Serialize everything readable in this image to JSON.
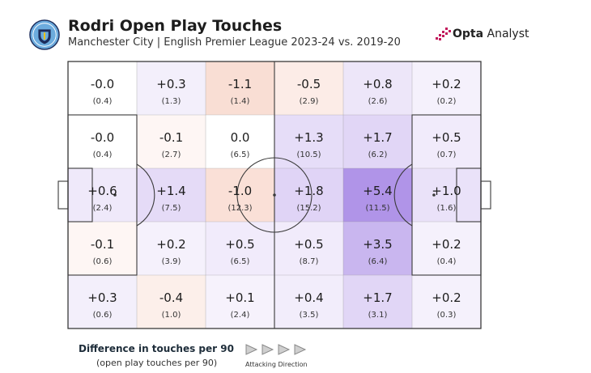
{
  "header": {
    "title": "Rodri Open Play Touches",
    "subtitle": "Manchester City | English Premier League 2023-24 vs. 2019-20",
    "crest_icon": "manchester-city-crest-icon",
    "brand_logo_icon": "opta-analyst-logo-icon",
    "brand_name_bold": "Opta",
    "brand_name_rest": " Analyst"
  },
  "legend": {
    "title": "Difference in touches per 90",
    "subtitle": "(open play touches per 90)",
    "direction_label": "Attacking Direction",
    "direction_icon": "play-arrow-icon"
  },
  "colors": {
    "positive": "#7c4dd8",
    "negative": "#f0a58a",
    "pitch_lines": "#3a3a3a",
    "grid_lines": "#9a9a9a"
  },
  "chart_data": {
    "type": "heatmap",
    "rows": 5,
    "cols": 6,
    "value_label": "Difference in touches per 90",
    "secondary_label": "open play touches per 90",
    "direction": "left-to-right",
    "cells": [
      [
        {
          "diff": "-0.0",
          "touches": "(0.4)"
        },
        {
          "diff": "+0.3",
          "touches": "(1.3)"
        },
        {
          "diff": "-1.1",
          "touches": "(1.4)"
        },
        {
          "diff": "-0.5",
          "touches": "(2.9)"
        },
        {
          "diff": "+0.8",
          "touches": "(2.6)"
        },
        {
          "diff": "+0.2",
          "touches": "(0.2)"
        }
      ],
      [
        {
          "diff": "-0.0",
          "touches": "(0.4)"
        },
        {
          "diff": "-0.1",
          "touches": "(2.7)"
        },
        {
          "diff": "0.0",
          "touches": "(6.5)"
        },
        {
          "diff": "+1.3",
          "touches": "(10.5)"
        },
        {
          "diff": "+1.7",
          "touches": "(6.2)"
        },
        {
          "diff": "+0.5",
          "touches": "(0.7)"
        }
      ],
      [
        {
          "diff": "+0.6",
          "touches": "(2.4)"
        },
        {
          "diff": "+1.4",
          "touches": "(7.5)"
        },
        {
          "diff": "-1.0",
          "touches": "(12.3)"
        },
        {
          "diff": "+1.8",
          "touches": "(15.2)"
        },
        {
          "diff": "+5.4",
          "touches": "(11.5)"
        },
        {
          "diff": "+1.0",
          "touches": "(1.6)"
        }
      ],
      [
        {
          "diff": "-0.1",
          "touches": "(0.6)"
        },
        {
          "diff": "+0.2",
          "touches": "(3.9)"
        },
        {
          "diff": "+0.5",
          "touches": "(6.5)"
        },
        {
          "diff": "+0.5",
          "touches": "(8.7)"
        },
        {
          "diff": "+3.5",
          "touches": "(6.4)"
        },
        {
          "diff": "+0.2",
          "touches": "(0.4)"
        }
      ],
      [
        {
          "diff": "+0.3",
          "touches": "(0.6)"
        },
        {
          "diff": "-0.4",
          "touches": "(1.0)"
        },
        {
          "diff": "+0.1",
          "touches": "(2.4)"
        },
        {
          "diff": "+0.4",
          "touches": "(3.5)"
        },
        {
          "diff": "+1.7",
          "touches": "(3.1)"
        },
        {
          "diff": "+0.2",
          "touches": "(0.3)"
        }
      ]
    ]
  }
}
